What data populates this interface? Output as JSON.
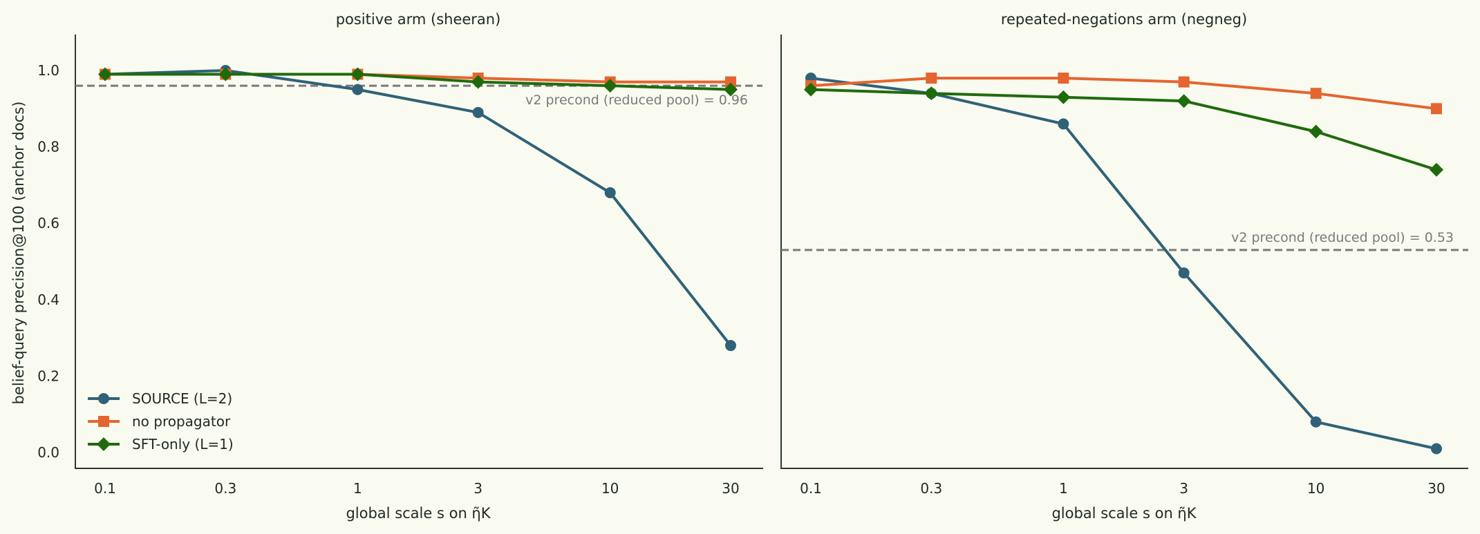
{
  "figure": {
    "ylabel": "belief-query precision@100 (anchor docs)",
    "colors": {
      "background": "#f9faf0",
      "axis": "#2b3a2e",
      "text": "#1f2a22",
      "reference_line": "#7a7a7a"
    }
  },
  "legend": {
    "placement": "lower-left",
    "entries": [
      {
        "label": "SOURCE (L=2)",
        "color": "#2f6278",
        "marker": "circle"
      },
      {
        "label": "no propagator",
        "color": "#e4652f",
        "marker": "square"
      },
      {
        "label": "SFT-only (L=1)",
        "color": "#1f6b0c",
        "marker": "diamond"
      }
    ]
  },
  "chart_data": [
    {
      "type": "line",
      "title": "positive arm (sheeran)",
      "xlabel": "global scale s on η̃K",
      "ylabel": "belief-query precision@100 (anchor docs)",
      "x_scale": "log",
      "x": [
        0.1,
        0.3,
        1,
        3,
        10,
        30
      ],
      "x_tick_labels": [
        "0.1",
        "0.3",
        "1",
        "3",
        "10",
        "30"
      ],
      "ylim": [
        -0.04,
        1.09
      ],
      "y_ticks": [
        0.0,
        0.2,
        0.4,
        0.6,
        0.8,
        1.0
      ],
      "y_tick_labels": [
        "0.0",
        "0.2",
        "0.4",
        "0.6",
        "0.8",
        "1.0"
      ],
      "grid": false,
      "series": [
        {
          "name": "SOURCE (L=2)",
          "color": "#2f6278",
          "marker": "circle",
          "values": [
            0.99,
            1.0,
            0.95,
            0.89,
            0.68,
            0.28
          ]
        },
        {
          "name": "no propagator",
          "color": "#e4652f",
          "marker": "square",
          "values": [
            0.99,
            0.99,
            0.99,
            0.98,
            0.97,
            0.97
          ]
        },
        {
          "name": "SFT-only (L=1)",
          "color": "#1f6b0c",
          "marker": "diamond",
          "values": [
            0.99,
            0.99,
            0.99,
            0.97,
            0.96,
            0.95
          ]
        }
      ],
      "reference_line": {
        "y": 0.96,
        "label": "v2 precond (reduced pool) = 0.96",
        "style": "dashed"
      }
    },
    {
      "type": "line",
      "title": "repeated-negations arm (negneg)",
      "xlabel": "global scale s on η̃K",
      "x_scale": "log",
      "x": [
        0.1,
        0.3,
        1,
        3,
        10,
        30
      ],
      "x_tick_labels": [
        "0.1",
        "0.3",
        "1",
        "3",
        "10",
        "30"
      ],
      "ylim": [
        -0.04,
        1.09
      ],
      "shared_y": true,
      "grid": false,
      "series": [
        {
          "name": "SOURCE (L=2)",
          "color": "#2f6278",
          "marker": "circle",
          "values": [
            0.98,
            0.94,
            0.86,
            0.47,
            0.08,
            0.01
          ]
        },
        {
          "name": "no propagator",
          "color": "#e4652f",
          "marker": "square",
          "values": [
            0.96,
            0.98,
            0.98,
            0.97,
            0.94,
            0.9
          ]
        },
        {
          "name": "SFT-only (L=1)",
          "color": "#1f6b0c",
          "marker": "diamond",
          "values": [
            0.95,
            0.94,
            0.93,
            0.92,
            0.84,
            0.74
          ]
        }
      ],
      "reference_line": {
        "y": 0.53,
        "label": "v2 precond (reduced pool) = 0.53",
        "style": "dashed"
      }
    }
  ]
}
